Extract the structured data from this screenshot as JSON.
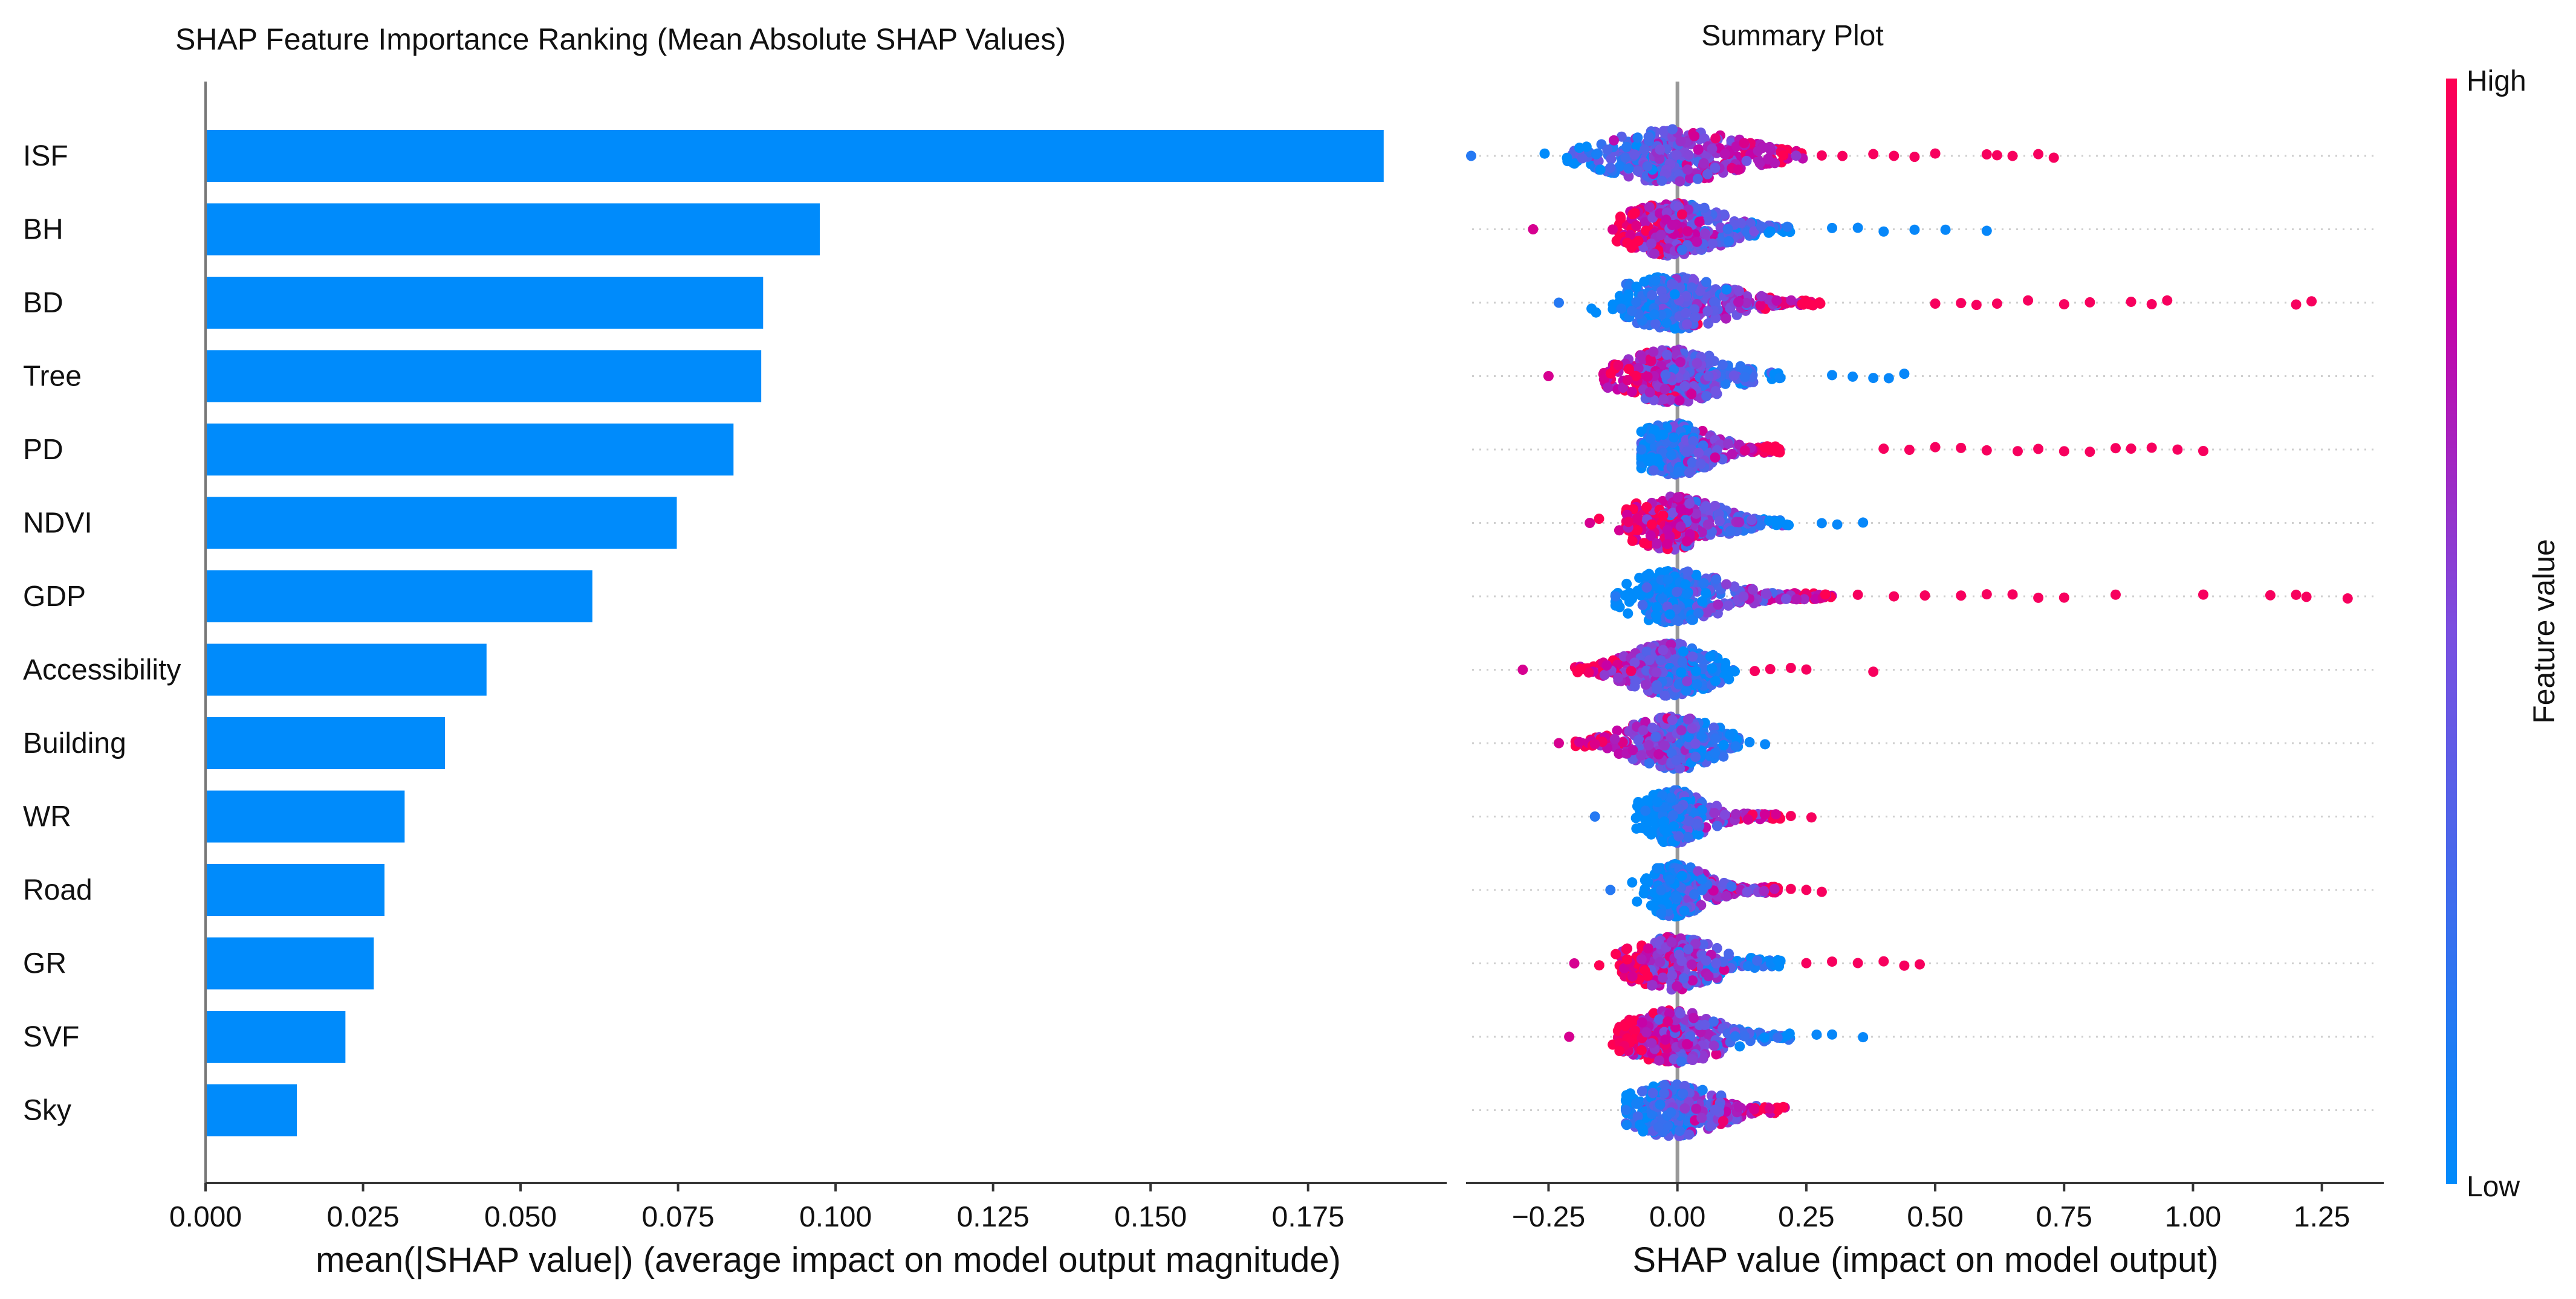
{
  "colors": {
    "bar": "#008bfb",
    "low": "#008bfb",
    "high": "#ff0052",
    "axis": "#333333"
  },
  "chart_data": [
    {
      "type": "bar",
      "orientation": "horizontal",
      "title": "SHAP Feature Importance Ranking (Mean Absolute SHAP Values)",
      "xlabel": "mean(|SHAP value|) (average impact on model output magnitude)",
      "ylabel": "",
      "categories": [
        "ISF",
        "BH",
        "BD",
        "Tree",
        "PD",
        "NDVI",
        "GDP",
        "Accessibility",
        "Building",
        "WR",
        "Road",
        "GR",
        "SVF",
        "Sky"
      ],
      "values": [
        0.187,
        0.0975,
        0.0885,
        0.0882,
        0.0838,
        0.0748,
        0.0614,
        0.0446,
        0.038,
        0.0316,
        0.0284,
        0.0267,
        0.0222,
        0.0145
      ],
      "xlim": [
        0,
        0.197
      ],
      "xticks": [
        0.0,
        0.025,
        0.05,
        0.075,
        0.1,
        0.125,
        0.15,
        0.175
      ],
      "xtick_labels": [
        "0.000",
        "0.025",
        "0.050",
        "0.075",
        "0.100",
        "0.125",
        "0.150",
        "0.175"
      ]
    },
    {
      "type": "scatter",
      "subtype": "beeswarm",
      "title": "Summary Plot",
      "xlabel": "SHAP value (impact on model output)",
      "xlim": [
        -0.41,
        1.37
      ],
      "xticks": [
        -0.25,
        0.0,
        0.25,
        0.5,
        0.75,
        1.0,
        1.25
      ],
      "xtick_labels": [
        "−0.25",
        "0.00",
        "0.25",
        "0.50",
        "0.75",
        "1.00",
        "1.25"
      ],
      "colorbar": {
        "label": "Feature value",
        "high_label": "High",
        "low_label": "Low"
      },
      "features": [
        {
          "name": "ISF",
          "min": -0.4,
          "max": 0.73,
          "core": [
            -0.22,
            0.25
          ],
          "spread": 0.55,
          "low_side": "left",
          "outliers_high": [
            0.28,
            0.32,
            0.38,
            0.42,
            0.46,
            0.5,
            0.6,
            0.62,
            0.65,
            0.7,
            0.73
          ]
        },
        {
          "name": "BH",
          "min": -0.28,
          "max": 0.6,
          "core": [
            -0.12,
            0.22
          ],
          "spread": 0.42,
          "low_side": "right",
          "outliers_high": [],
          "outliers_low": [
            0.3,
            0.35,
            0.4,
            0.46,
            0.52,
            0.6
          ]
        },
        {
          "name": "BD",
          "min": -0.23,
          "max": 1.24,
          "core": [
            -0.1,
            0.28
          ],
          "spread": 0.45,
          "low_side": "left",
          "outliers_high": [
            0.5,
            0.55,
            0.58,
            0.62,
            0.68,
            0.75,
            0.8,
            0.88,
            0.92,
            0.95,
            1.2,
            1.23
          ]
        },
        {
          "name": "Tree",
          "min": -0.25,
          "max": 0.44,
          "core": [
            -0.15,
            0.2
          ],
          "spread": 0.42,
          "low_side": "right",
          "outliers_high": [],
          "outliers_low": [
            0.3,
            0.34,
            0.38,
            0.41,
            0.44
          ]
        },
        {
          "name": "PD",
          "min": -0.07,
          "max": 1.02,
          "core": [
            -0.06,
            0.2
          ],
          "spread": 0.42,
          "low_side": "left",
          "outliers_high": [
            0.4,
            0.45,
            0.5,
            0.55,
            0.6,
            0.66,
            0.7,
            0.75,
            0.8,
            0.85,
            0.88,
            0.92,
            0.97,
            1.02
          ]
        },
        {
          "name": "NDVI",
          "min": -0.17,
          "max": 0.36,
          "core": [
            -0.1,
            0.22
          ],
          "spread": 0.42,
          "low_side": "right",
          "outliers_high": [],
          "outliers_low": [
            0.28,
            0.31,
            0.36
          ]
        },
        {
          "name": "GDP",
          "min": -0.12,
          "max": 1.3,
          "core": [
            -0.05,
            0.3
          ],
          "spread": 0.35,
          "low_side": "left",
          "outliers_high": [
            0.35,
            0.42,
            0.48,
            0.55,
            0.6,
            0.65,
            0.7,
            0.75,
            0.85,
            1.02,
            1.15,
            1.2,
            1.22,
            1.3
          ]
        },
        {
          "name": "Accessibility",
          "min": -0.3,
          "max": 0.38,
          "core": [
            -0.2,
            0.1
          ],
          "spread": 0.34,
          "low_side": "right",
          "outliers_high": [
            0.15,
            0.18,
            0.22,
            0.25,
            0.38
          ],
          "outliers_low": []
        },
        {
          "name": "Building",
          "min": -0.23,
          "max": 0.17,
          "core": [
            -0.2,
            0.12
          ],
          "spread": 0.4,
          "low_side": "right",
          "outliers_high": [],
          "outliers_low": [
            0.14,
            0.17
          ]
        },
        {
          "name": "WR",
          "min": -0.16,
          "max": 0.26,
          "core": [
            -0.03,
            0.2
          ],
          "spread": 0.28,
          "low_side": "left",
          "outliers_high": [
            0.22,
            0.26
          ],
          "outliers_low": []
        },
        {
          "name": "Road",
          "min": -0.13,
          "max": 0.28,
          "core": [
            -0.03,
            0.2
          ],
          "spread": 0.28,
          "low_side": "left",
          "outliers_high": [
            0.22,
            0.25,
            0.28
          ],
          "outliers_low": []
        },
        {
          "name": "GR",
          "min": -0.2,
          "max": 0.47,
          "core": [
            -0.12,
            0.2
          ],
          "spread": 0.3,
          "low_side": "right",
          "outliers_high": [
            0.25,
            0.3,
            0.35,
            0.4,
            0.44,
            0.47
          ],
          "outliers_low": []
        },
        {
          "name": "SVF",
          "min": -0.21,
          "max": 0.36,
          "core": [
            -0.12,
            0.22
          ],
          "spread": 0.38,
          "low_side": "right",
          "outliers_high": [],
          "outliers_low": [
            0.27,
            0.3,
            0.36
          ]
        },
        {
          "name": "Sky",
          "min": -0.1,
          "max": 0.21,
          "core": [
            -0.1,
            0.21
          ],
          "spread": 0.36,
          "low_side": "left",
          "outliers_high": [],
          "outliers_low": []
        }
      ]
    }
  ]
}
